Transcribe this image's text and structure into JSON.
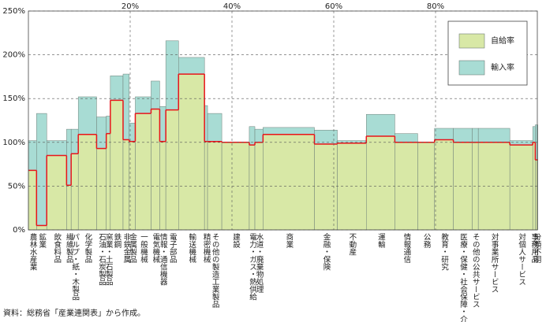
{
  "chart_data": {
    "type": "variable-width-stacked-bar",
    "categories": [
      "農林水産業",
      "鉱業",
      "飲食料品",
      "繊維製品",
      "パルプ・紙・木製品",
      "化学製品",
      "石油・石炭製品",
      "窯業・土石製品",
      "鉄鋼",
      "非鉄金属",
      "金属製品",
      "一般機械",
      "電気機械",
      "情報・通信機器",
      "電子部品",
      "輸送機械",
      "精密機械",
      "その他の製造工業製品",
      "建設",
      "電力・ガス・熱供給",
      "水道・廃棄物処理",
      "商業",
      "金融・保険",
      "不動産",
      "運輸",
      "情報通信",
      "公務",
      "教育・研究",
      "医療・保健・社会保障・介護",
      "その他の公共サービス",
      "対事業所サービス",
      "対個人サービス",
      "事務用品",
      "分類不明"
    ],
    "widths": [
      1.6,
      2.0,
      3.9,
      0.9,
      1.4,
      3.6,
      1.9,
      0.8,
      2.5,
      1.2,
      1.2,
      3.1,
      1.7,
      1.2,
      2.5,
      5.1,
      0.6,
      2.8,
      5.4,
      1.1,
      1.6,
      10.1,
      4.5,
      5.7,
      5.6,
      4.5,
      3.3,
      3.7,
      3.7,
      1.2,
      6.2,
      4.5,
      0.5,
      0.5
    ],
    "series": [
      {
        "name": "自給率",
        "color": "#d8e8a6",
        "values": [
          68,
          5,
          85,
          51,
          87,
          109,
          93,
          110,
          148,
          103,
          101,
          133,
          138,
          101,
          137,
          178,
          101,
          101,
          100,
          97,
          100,
          109,
          98,
          99,
          107,
          100,
          100,
          103,
          100,
          100,
          100,
          97,
          100,
          80
        ]
      },
      {
        "name": "輸入率",
        "color": "#a8dcd4",
        "values": [
          34,
          128,
          17,
          64,
          28,
          43,
          36,
          20,
          28,
          75,
          21,
          19,
          32,
          40,
          79,
          19,
          41,
          32,
          0,
          21,
          15,
          8,
          16,
          3,
          25,
          10,
          0,
          13,
          16,
          16,
          16,
          5,
          18,
          40
        ]
      }
    ],
    "line_color": "#e8141a",
    "xlim": [
      0,
      100
    ],
    "xticks": [
      {
        "value": 20,
        "label": "20%"
      },
      {
        "value": 40,
        "label": "40%"
      },
      {
        "value": 60,
        "label": "60%"
      },
      {
        "value": 80,
        "label": "80%"
      }
    ],
    "ylim": [
      0,
      250
    ],
    "yticks": [
      {
        "value": 0,
        "label": "0%"
      },
      {
        "value": 50,
        "label": "50%"
      },
      {
        "value": 100,
        "label": "100%"
      },
      {
        "value": 150,
        "label": "150%"
      },
      {
        "value": 200,
        "label": "200%"
      },
      {
        "value": 250,
        "label": "250%"
      }
    ],
    "grid": true,
    "legend": "upper right",
    "source": "資料：総務省「産業連関表」から作成。"
  }
}
